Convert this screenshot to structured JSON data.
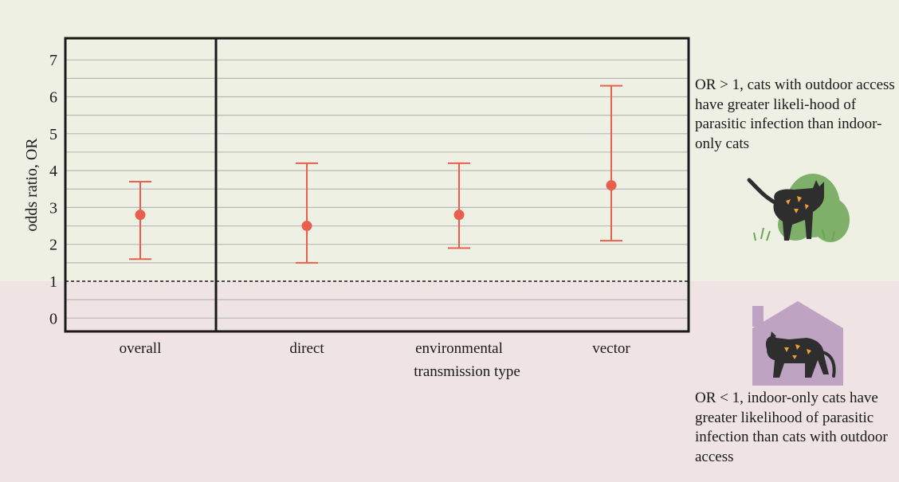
{
  "colors": {
    "upper_background": "#eef0e4",
    "lower_background": "#efe3e3",
    "marker": "#e8604c",
    "axis": "#1a1a1a",
    "grid": "#b8b8b8",
    "house": "#bfa3c2",
    "bush": "#7fb069"
  },
  "notes": {
    "above": "OR > 1, cats with outdoor access have greater likeli-hood of parasitic infection than indoor-only cats",
    "below": "OR < 1, indoor-only cats have greater likelihood of parasitic infection than cats with outdoor access"
  },
  "icons": {
    "outdoor": "outdoor-cat-icon",
    "indoor": "indoor-cat-house-icon"
  },
  "chart_data": {
    "type": "errorbar",
    "ylabel": "odds ratio, OR",
    "xlabel": "transmission type",
    "ylim": [
      -0.3,
      7.3
    ],
    "yticks": [
      0,
      1,
      2,
      3,
      4,
      5,
      6,
      7
    ],
    "grid": true,
    "reference_line": 1,
    "categories": [
      "overall",
      "direct",
      "environmental",
      "vector"
    ],
    "points": [
      {
        "category": "overall",
        "estimate": 2.8,
        "lower": 1.6,
        "upper": 3.7
      },
      {
        "category": "direct",
        "estimate": 2.5,
        "lower": 1.5,
        "upper": 4.2
      },
      {
        "category": "environmental",
        "estimate": 2.8,
        "lower": 1.9,
        "upper": 4.2
      },
      {
        "category": "vector",
        "estimate": 3.6,
        "lower": 2.1,
        "upper": 6.3
      }
    ]
  }
}
